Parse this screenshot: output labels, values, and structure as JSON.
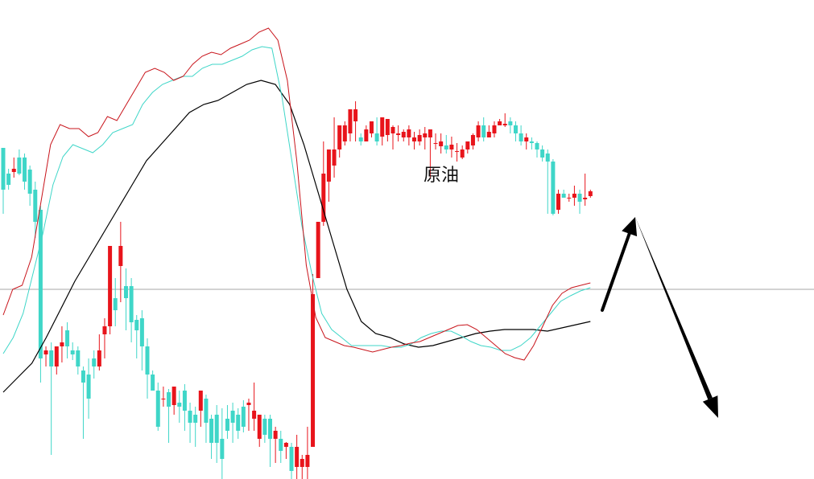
{
  "chart_data": {
    "type": "candlestick",
    "title": "原油",
    "xlabel": "",
    "ylabel": "",
    "grid": false,
    "reference_line": 360,
    "ylim": [
      0,
      596
    ],
    "colors": {
      "up": "#e8141b",
      "down": "#3fd6c8",
      "ma_fast": "#c8141b",
      "ma_mid": "#3fd6c8",
      "ma_slow": "#000000",
      "reference": "#8a8a8a",
      "arrow": "#000000"
    },
    "candles": [
      [
        412,
        392,
        360,
        330
      ],
      [
        380,
        386,
        366,
        360
      ],
      [
        382,
        400,
        386,
        375
      ],
      [
        400,
        410,
        380,
        378
      ],
      [
        400,
        405,
        370,
        360
      ],
      [
        385,
        390,
        355,
        340
      ],
      [
        360,
        370,
        320,
        300
      ],
      [
        335,
        340,
        150,
        120
      ],
      [
        155,
        165,
        160,
        140
      ],
      [
        160,
        170,
        140,
        30
      ],
      [
        140,
        145,
        165,
        130
      ],
      [
        165,
        190,
        170,
        145
      ],
      [
        185,
        195,
        165,
        150
      ],
      [
        160,
        170,
        155,
        148
      ],
      [
        160,
        165,
        140,
        130
      ],
      [
        135,
        140,
        120,
        50
      ],
      [
        130,
        150,
        100,
        75
      ],
      [
        150,
        160,
        140,
        125
      ],
      [
        140,
        180,
        160,
        135
      ],
      [
        180,
        200,
        190,
        150
      ],
      [
        190,
        220,
        290,
        180
      ],
      [
        225,
        250,
        210,
        190
      ],
      [
        265,
        320,
        290,
        220
      ],
      [
        240,
        262,
        225,
        185
      ],
      [
        240,
        250,
        195,
        170
      ],
      [
        198,
        204,
        185,
        150
      ],
      [
        200,
        210,
        165,
        135
      ],
      [
        165,
        175,
        130,
        100
      ],
      [
        130,
        135,
        110,
        110
      ],
      [
        110,
        120,
        65,
        60
      ],
      [
        100,
        115,
        100,
        90
      ],
      [
        108,
        112,
        90,
        45
      ],
      [
        92,
        96,
        115,
        80
      ],
      [
        95,
        110,
        90,
        70
      ],
      [
        110,
        118,
        85,
        60
      ],
      [
        85,
        95,
        70,
        45
      ],
      [
        80,
        90,
        70,
        40
      ],
      [
        85,
        110,
        110,
        65
      ],
      [
        100,
        105,
        70,
        45
      ],
      [
        75,
        80,
        45,
        25
      ],
      [
        80,
        92,
        45,
        20
      ],
      [
        50,
        88,
        25,
        0
      ],
      [
        75,
        92,
        60,
        50
      ],
      [
        85,
        95,
        70,
        45
      ],
      [
        80,
        88,
        60,
        50
      ],
      [
        90,
        98,
        65,
        58
      ],
      [
        92,
        100,
        95,
        60
      ],
      [
        75,
        120,
        85,
        60
      ],
      [
        50,
        55,
        80,
        40
      ],
      [
        75,
        80,
        55,
        45
      ],
      [
        75,
        80,
        50,
        15
      ],
      [
        50,
        65,
        60,
        20
      ],
      [
        50,
        60,
        35,
        20
      ],
      [
        40,
        46,
        45,
        25
      ],
      [
        40,
        45,
        10,
        0
      ],
      [
        15,
        55,
        40,
        0
      ],
      [
        15,
        30,
        25,
        0
      ],
      [
        15,
        65,
        30,
        0
      ],
      [
        40,
        255,
        230,
        60
      ],
      [
        250,
        300,
        320,
        255
      ],
      [
        320,
        420,
        380,
        315
      ],
      [
        370,
        400,
        410,
        345
      ],
      [
        390,
        450,
        410,
        375
      ],
      [
        410,
        420,
        440,
        400
      ],
      [
        420,
        445,
        440,
        415
      ],
      [
        430,
        438,
        460,
        420
      ],
      [
        445,
        470,
        460,
        420
      ],
      [
        425,
        430,
        420,
        415
      ],
      [
        420,
        440,
        435,
        420
      ],
      [
        430,
        445,
        445,
        425
      ],
      [
        430,
        450,
        420,
        415
      ],
      [
        426,
        448,
        450,
        415
      ],
      [
        428,
        445,
        448,
        420
      ],
      [
        430,
        440,
        438,
        410
      ],
      [
        428,
        440,
        430,
        420
      ],
      [
        425,
        435,
        432,
        420
      ],
      [
        425,
        440,
        435,
        415
      ],
      [
        420,
        432,
        425,
        410
      ],
      [
        420,
        435,
        428,
        415
      ],
      [
        425,
        438,
        430,
        410
      ],
      [
        425,
        430,
        435,
        375
      ],
      [
        418,
        430,
        418,
        410
      ],
      [
        414,
        430,
        420,
        405
      ],
      [
        415,
        428,
        410,
        405
      ],
      [
        410,
        426,
        416,
        400
      ],
      [
        408,
        418,
        408,
        395
      ],
      [
        400,
        415,
        410,
        398
      ],
      [
        410,
        420,
        420,
        405
      ],
      [
        415,
        430,
        428,
        410
      ],
      [
        425,
        445,
        440,
        420
      ],
      [
        440,
        450,
        425,
        420
      ],
      [
        425,
        440,
        432,
        425
      ],
      [
        430,
        445,
        440,
        425
      ],
      [
        440,
        448,
        445,
        440
      ],
      [
        440,
        455,
        442,
        438
      ],
      [
        445,
        450,
        440,
        430
      ],
      [
        440,
        445,
        430,
        420
      ],
      [
        430,
        440,
        420,
        415
      ],
      [
        420,
        430,
        425,
        410
      ],
      [
        420,
        425,
        418,
        410
      ],
      [
        418,
        420,
        410,
        400
      ],
      [
        410,
        415,
        400,
        395
      ],
      [
        405,
        410,
        395,
        330
      ],
      [
        395,
        398,
        330,
        328
      ],
      [
        335,
        360,
        355,
        330
      ],
      [
        355,
        360,
        350,
        350
      ],
      [
        350,
        355,
        350,
        345
      ],
      [
        350,
        365,
        355,
        340
      ],
      [
        355,
        360,
        345,
        330
      ],
      [
        348,
        380,
        350,
        340
      ],
      [
        352,
        360,
        358,
        350
      ]
    ],
    "ma_fast": [
      392,
      360,
      355,
      320,
      250,
      180,
      155,
      160,
      160,
      170,
      165,
      145,
      150,
      130,
      110,
      90,
      85,
      90,
      100,
      95,
      80,
      70,
      65,
      68,
      60,
      55,
      50,
      40,
      35,
      50,
      100,
      200,
      330,
      395,
      420,
      425,
      430,
      432,
      435,
      438,
      435,
      432,
      430,
      427,
      425,
      420,
      415,
      410,
      405,
      404,
      410,
      420,
      430,
      440,
      445,
      448,
      430,
      405,
      380,
      365,
      358,
      355,
      352
    ],
    "ma_mid": [
      440,
      420,
      390,
      340,
      290,
      230,
      195,
      180,
      185,
      190,
      180,
      165,
      160,
      155,
      130,
      115,
      105,
      100,
      95,
      95,
      85,
      80,
      80,
      75,
      70,
      62,
      58,
      60,
      120,
      200,
      280,
      340,
      390,
      410,
      420,
      430,
      430,
      430,
      430,
      432,
      432,
      428,
      420,
      415,
      412,
      412,
      418,
      425,
      430,
      432,
      436,
      436,
      430,
      420,
      405,
      390,
      375,
      368,
      362,
      358
    ],
    "ma_slow": [
      488,
      470,
      452,
      420,
      385,
      350,
      320,
      290,
      260,
      230,
      200,
      180,
      160,
      140,
      130,
      125,
      115,
      105,
      100,
      105,
      130,
      180,
      240,
      300,
      360,
      400,
      415,
      420,
      428,
      432,
      430,
      425,
      420,
      415,
      412,
      410,
      410,
      410,
      412,
      408,
      404,
      400
    ],
    "arrow_up": [
      [
        748,
        386
      ],
      [
        789,
        270
      ]
    ],
    "arrow_down": [
      [
        789,
        270
      ],
      [
        892,
        520
      ]
    ]
  }
}
